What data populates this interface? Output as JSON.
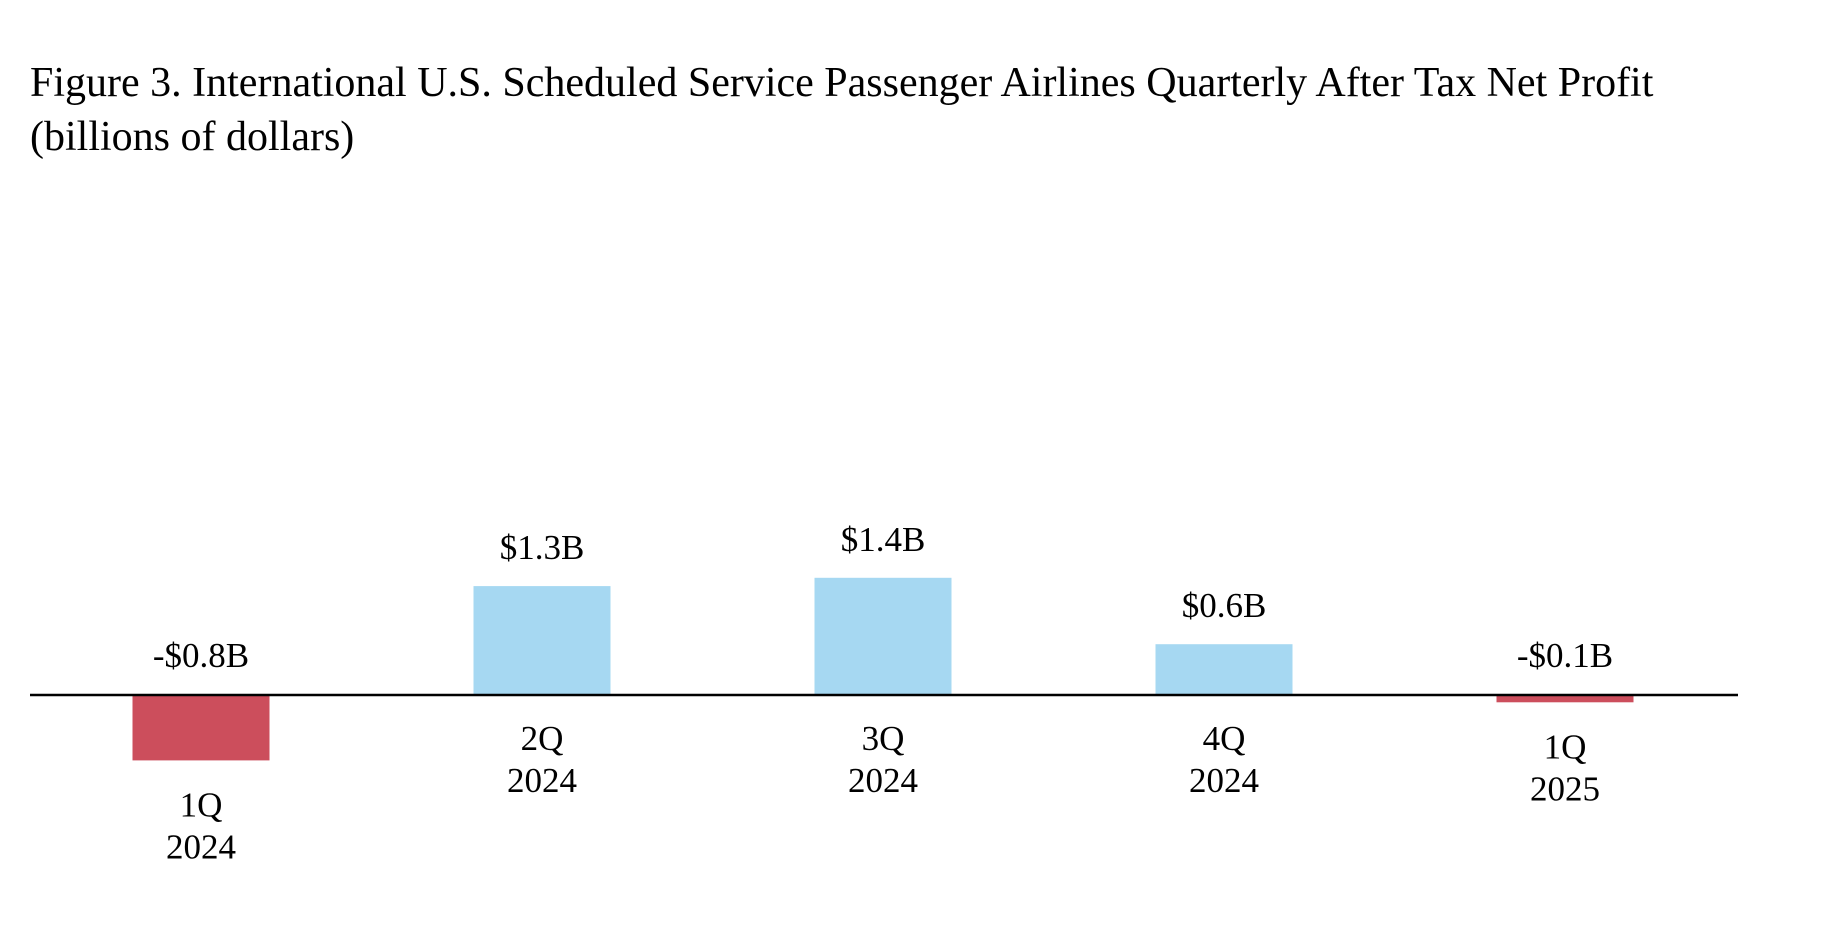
{
  "chart_data": {
    "type": "bar",
    "title_line1": "Figure 3. International U.S. Scheduled Service Passenger Airlines Quarterly After Tax Net Profit",
    "title_line2": "(billions of dollars)",
    "categories": [
      {
        "quarter": "1Q",
        "year": "2024"
      },
      {
        "quarter": "2Q",
        "year": "2024"
      },
      {
        "quarter": "3Q",
        "year": "2024"
      },
      {
        "quarter": "4Q",
        "year": "2024"
      },
      {
        "quarter": "1Q",
        "year": "2025"
      }
    ],
    "values": [
      -0.8,
      1.3,
      1.4,
      0.6,
      -0.1
    ],
    "data_labels": [
      "-$0.8B",
      "$1.3B",
      "$1.4B",
      "$0.6B",
      "-$0.1B"
    ],
    "ylim": [
      -1.0,
      1.5
    ],
    "xlabel": "",
    "ylabel": "",
    "grid": false,
    "colors": {
      "positive": "#A6D8F2",
      "negative": "#CC4E5C",
      "axis": "#000000"
    }
  }
}
